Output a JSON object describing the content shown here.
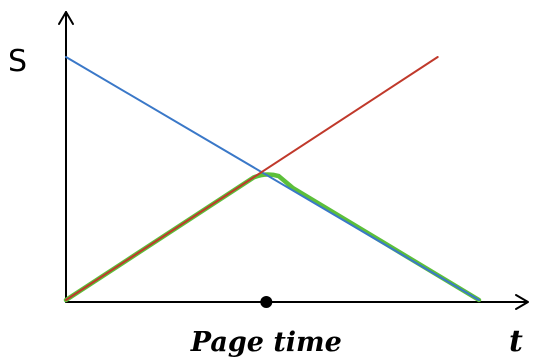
{
  "chart_data": {
    "type": "line",
    "title": "",
    "xlabel": "t",
    "ylabel": "S",
    "xlim": [
      0,
      10
    ],
    "ylim": [
      0,
      10
    ],
    "grid": false,
    "legend": "none",
    "series": [
      {
        "color": "#3a78c8",
        "x": [
          0,
          10
        ],
        "y": [
          10,
          0
        ]
      },
      {
        "color": "#c0392b",
        "x": [
          0,
          9
        ],
        "y": [
          0,
          10
        ]
      },
      {
        "color": "#5cbf3a",
        "x": [
          0,
          4.55,
          4.85,
          5.15,
          5.5,
          10
        ],
        "y": [
          0,
          5.05,
          5.25,
          5.1,
          4.6,
          0
        ]
      }
    ],
    "markers": [
      {
        "x": 4.85,
        "y": 0,
        "label": "Page time",
        "color": "#000000"
      }
    ]
  }
}
